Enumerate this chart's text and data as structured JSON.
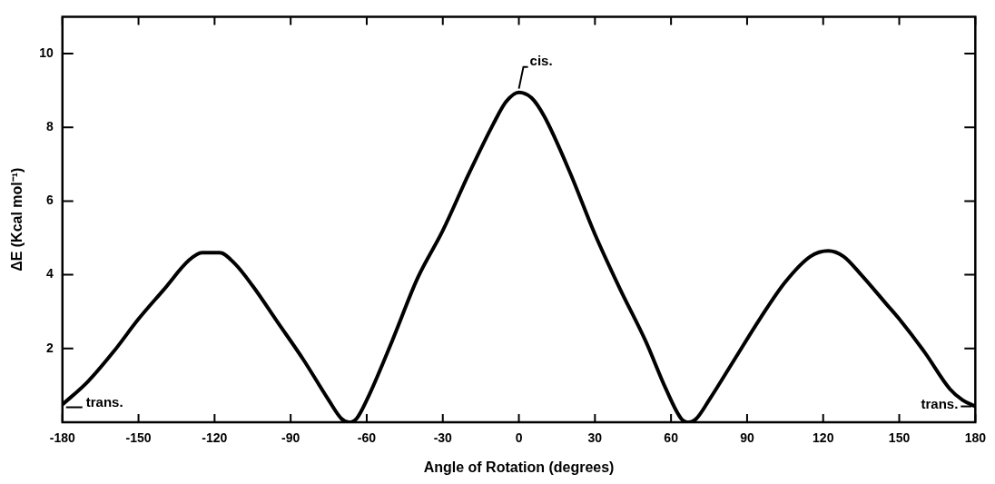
{
  "chart_data": {
    "type": "line",
    "xlabel": "Angle of Rotation (degrees)",
    "ylabel": "ΔE (Kcal mol⁻¹)",
    "xlim": [
      -180,
      180
    ],
    "xticks": [
      -180,
      -150,
      -120,
      -90,
      -60,
      -30,
      0,
      30,
      60,
      90,
      120,
      150,
      180
    ],
    "ylim": [
      0,
      11
    ],
    "yticks": [
      2,
      4,
      6,
      8,
      10
    ],
    "grid": false,
    "legend": false,
    "marker": "none",
    "line_style": "solid",
    "series": [
      {
        "color": "#000000",
        "x": [
          -180,
          -170,
          -160,
          -150,
          -140,
          -130,
          -125,
          -118,
          -112,
          -105,
          -95,
          -85,
          -75,
          -70,
          -67,
          -64,
          -60,
          -50,
          -40,
          -30,
          -20,
          -10,
          -5,
          0,
          5,
          10,
          20,
          30,
          40,
          50,
          58,
          64,
          67,
          70,
          75,
          85,
          95,
          105,
          115,
          122,
          128,
          135,
          145,
          150,
          160,
          170,
          175,
          180
        ],
        "values": [
          0.48,
          1.1,
          1.9,
          2.8,
          3.6,
          4.4,
          4.6,
          4.6,
          4.3,
          3.7,
          2.7,
          1.7,
          0.6,
          0.1,
          0,
          0.1,
          0.6,
          2.2,
          3.9,
          5.2,
          6.7,
          8.1,
          8.7,
          8.95,
          8.8,
          8.3,
          6.8,
          5.1,
          3.6,
          2.2,
          0.9,
          0.1,
          0,
          0.1,
          0.6,
          1.7,
          2.8,
          3.8,
          4.5,
          4.65,
          4.5,
          4.0,
          3.2,
          2.8,
          1.9,
          0.9,
          0.6,
          0.43
        ]
      }
    ],
    "annotations": [
      {
        "text": "cis.",
        "x": 0,
        "y": 8.95
      },
      {
        "text": "trans.",
        "x": -180,
        "y": 0.48
      },
      {
        "text": "trans.",
        "x": 180,
        "y": 0.43
      }
    ]
  }
}
